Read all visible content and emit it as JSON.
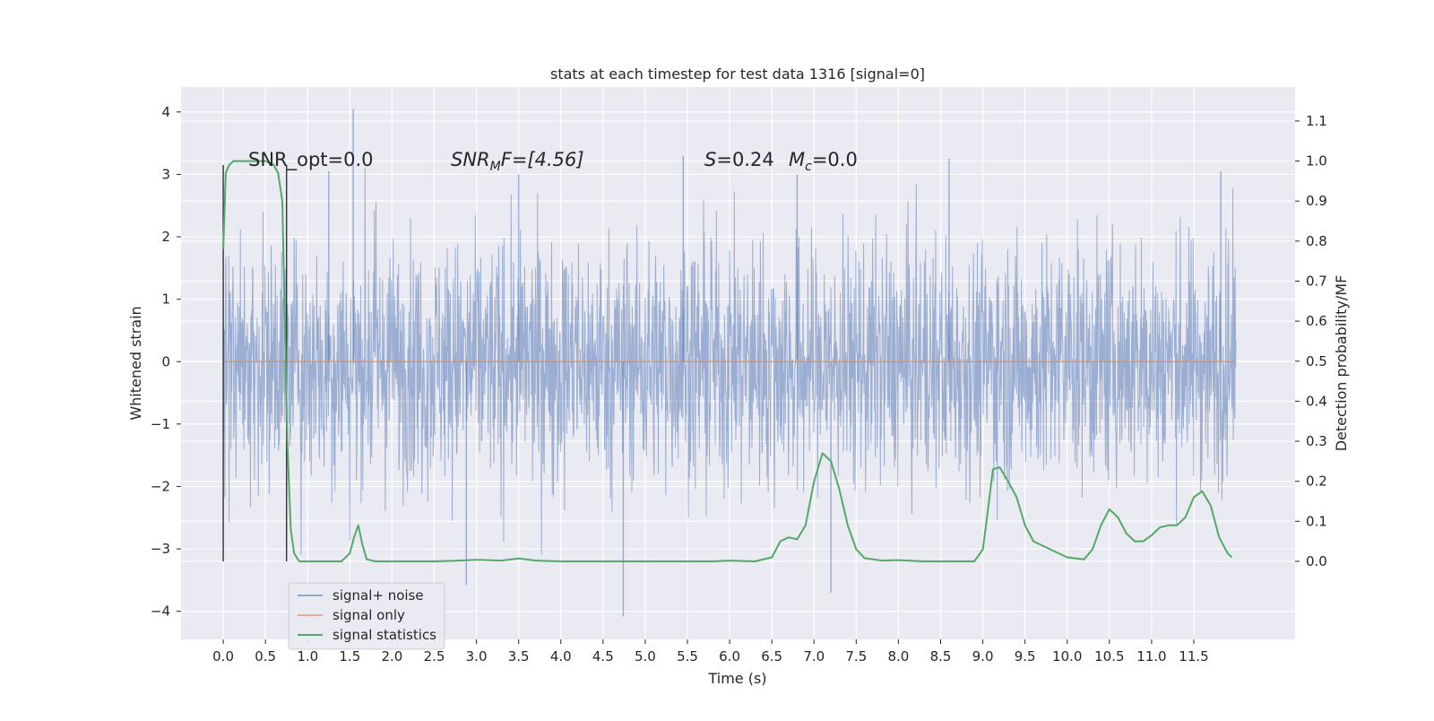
{
  "chart_data": {
    "type": "line",
    "title": "stats at each timestep for test data 1316 [signal=0]",
    "xlabel": "Time (s)",
    "ylabel_left": "Whitened strain",
    "ylabel_right": "Detection probability/MF",
    "xlim": [
      -0.5,
      12.7
    ],
    "ylim_left": [
      -4.45,
      4.4
    ],
    "ylim_right": [
      -0.195,
      1.185
    ],
    "x_ticks": [
      "0.0",
      "0.5",
      "1.0",
      "1.5",
      "2.0",
      "2.5",
      "3.0",
      "3.5",
      "4.0",
      "4.5",
      "5.0",
      "5.5",
      "6.0",
      "6.5",
      "7.0",
      "7.5",
      "8.0",
      "8.5",
      "9.0",
      "9.5",
      "10.0",
      "10.5",
      "11.0",
      "11.5"
    ],
    "y_ticks_left": [
      "4",
      "3",
      "2",
      "1",
      "0",
      "−1",
      "−2",
      "−3",
      "−4"
    ],
    "y_ticks_right": [
      "1.1",
      "1.0",
      "0.9",
      "0.8",
      "0.7",
      "0.6",
      "0.5",
      "0.4",
      "0.3",
      "0.2",
      "0.1",
      "0.0"
    ],
    "grid": true,
    "legend_placement": "lower-left",
    "annotations": {
      "snr_opt": "SNR_opt=0.0",
      "snr_mf_label": "SNR",
      "snr_mf_sub": "M",
      "snr_mf_rest": "F=[4.56]",
      "s_label": "S",
      "s_value": "=0.24",
      "mc_label": "M",
      "mc_sub": "c",
      "mc_value": "=0.0"
    },
    "markers": [
      {
        "x": 0.0,
        "y_bottom": -3.2,
        "y_top": 3.15
      },
      {
        "x": 0.75,
        "y_bottom": -3.2,
        "y_top": 3.15
      }
    ],
    "series": [
      {
        "name": "signal+ noise",
        "color": "#4c72b0",
        "x_range": [
          0.0,
          12.0
        ],
        "spread": 2.0,
        "peaks": [
          [
            1.54,
            4.05
          ],
          [
            2.88,
            -3.58
          ],
          [
            4.74,
            -4.08
          ],
          [
            7.2,
            -3.7
          ],
          [
            1.25,
            3.05
          ],
          [
            5.45,
            3.3
          ],
          [
            8.6,
            3.25
          ],
          [
            11.82,
            3.05
          ],
          [
            3.5,
            3.0
          ],
          [
            6.8,
            3.0
          ]
        ]
      },
      {
        "name": "signal only",
        "color": "#dd8452",
        "x": [
          0.0,
          12.0
        ],
        "y": [
          0.0,
          0.0
        ]
      },
      {
        "name": "signal statistics",
        "color": "#55a868",
        "axis": "right",
        "x": [
          0.0,
          0.03,
          0.07,
          0.12,
          0.2,
          0.3,
          0.4,
          0.5,
          0.6,
          0.65,
          0.7,
          0.73,
          0.76,
          0.8,
          0.84,
          0.9,
          1.0,
          1.2,
          1.4,
          1.5,
          1.55,
          1.6,
          1.65,
          1.7,
          1.8,
          1.9,
          2.0,
          2.5,
          2.8,
          3.0,
          3.3,
          3.5,
          3.7,
          4.0,
          4.5,
          5.0,
          5.5,
          5.8,
          6.0,
          6.3,
          6.5,
          6.6,
          6.7,
          6.8,
          6.9,
          7.0,
          7.1,
          7.2,
          7.3,
          7.4,
          7.5,
          7.6,
          7.8,
          8.0,
          8.3,
          8.6,
          8.9,
          9.0,
          9.05,
          9.12,
          9.2,
          9.3,
          9.4,
          9.5,
          9.6,
          9.8,
          10.0,
          10.2,
          10.3,
          10.4,
          10.5,
          10.6,
          10.7,
          10.8,
          10.9,
          11.0,
          11.1,
          11.2,
          11.3,
          11.4,
          11.5,
          11.6,
          11.7,
          11.8,
          11.9,
          11.95
        ],
        "y": [
          0.78,
          0.97,
          0.99,
          1.0,
          1.0,
          1.0,
          1.0,
          1.0,
          0.99,
          0.97,
          0.9,
          0.6,
          0.3,
          0.08,
          0.02,
          0.0,
          0.0,
          0.0,
          0.0,
          0.02,
          0.06,
          0.09,
          0.04,
          0.005,
          0.0,
          0.0,
          0.0,
          0.0,
          0.002,
          0.004,
          0.002,
          0.007,
          0.002,
          0.0,
          0.0,
          0.0,
          0.0,
          0.0,
          0.002,
          0.0,
          0.01,
          0.05,
          0.06,
          0.055,
          0.09,
          0.2,
          0.27,
          0.25,
          0.18,
          0.09,
          0.03,
          0.008,
          0.002,
          0.003,
          0.0,
          0.0,
          0.0,
          0.03,
          0.11,
          0.23,
          0.235,
          0.2,
          0.16,
          0.09,
          0.05,
          0.03,
          0.01,
          0.005,
          0.03,
          0.09,
          0.13,
          0.11,
          0.07,
          0.05,
          0.05,
          0.065,
          0.085,
          0.09,
          0.09,
          0.11,
          0.16,
          0.175,
          0.14,
          0.06,
          0.02,
          0.01
        ]
      }
    ]
  }
}
